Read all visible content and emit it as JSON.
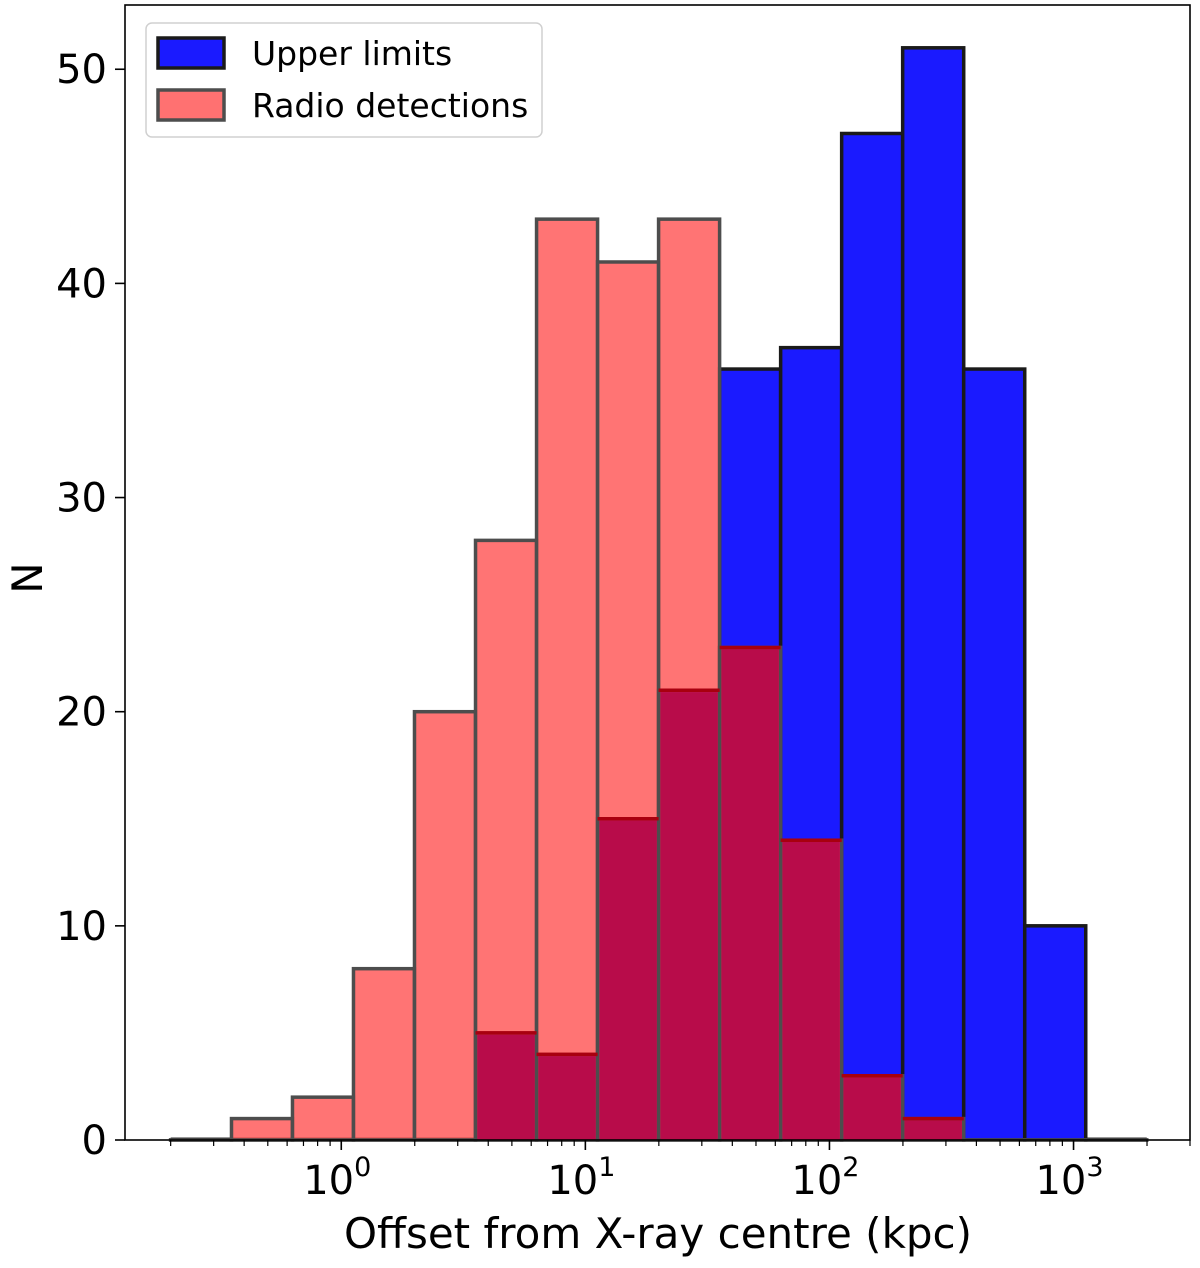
{
  "chart_data": {
    "type": "histogram",
    "xscale": "log",
    "xlabel": "Offset from X-ray centre (kpc)",
    "ylabel": "N",
    "xlim": [
      0.13,
      3000
    ],
    "ylim": [
      0,
      53
    ],
    "legend_position": "top-left",
    "yticks": [
      0,
      10,
      20,
      30,
      40,
      50
    ],
    "yticklabels": [
      "0",
      "10",
      "20",
      "30",
      "40",
      "50"
    ],
    "xticks": [
      {
        "base": "10",
        "exp": "0",
        "value": 1
      },
      {
        "base": "10",
        "exp": "1",
        "value": 10
      },
      {
        "base": "10",
        "exp": "2",
        "value": 100
      },
      {
        "base": "10",
        "exp": "3",
        "value": 1000
      }
    ],
    "bin_edges": [
      0.2,
      0.355,
      0.631,
      1.122,
      1.995,
      3.548,
      6.31,
      11.22,
      19.95,
      35.48,
      63.1,
      112.2,
      199.5,
      354.8,
      631,
      1122,
      1995
    ],
    "series": [
      {
        "name": "Upper limits",
        "color": "#1a1aff",
        "edge_color": "#1a1a1a",
        "values": [
          0,
          0,
          0,
          0,
          0,
          5,
          4,
          15,
          21,
          36,
          37,
          47,
          51,
          36,
          10,
          0
        ]
      },
      {
        "name": "Radio detections",
        "color": "#ff4d4d",
        "edge_color": "#4d4d4d",
        "overlap_color": "#b80c4a",
        "values": [
          0,
          1,
          2,
          8,
          20,
          28,
          43,
          41,
          43,
          23,
          14,
          3,
          1,
          0,
          0,
          0
        ]
      }
    ]
  }
}
